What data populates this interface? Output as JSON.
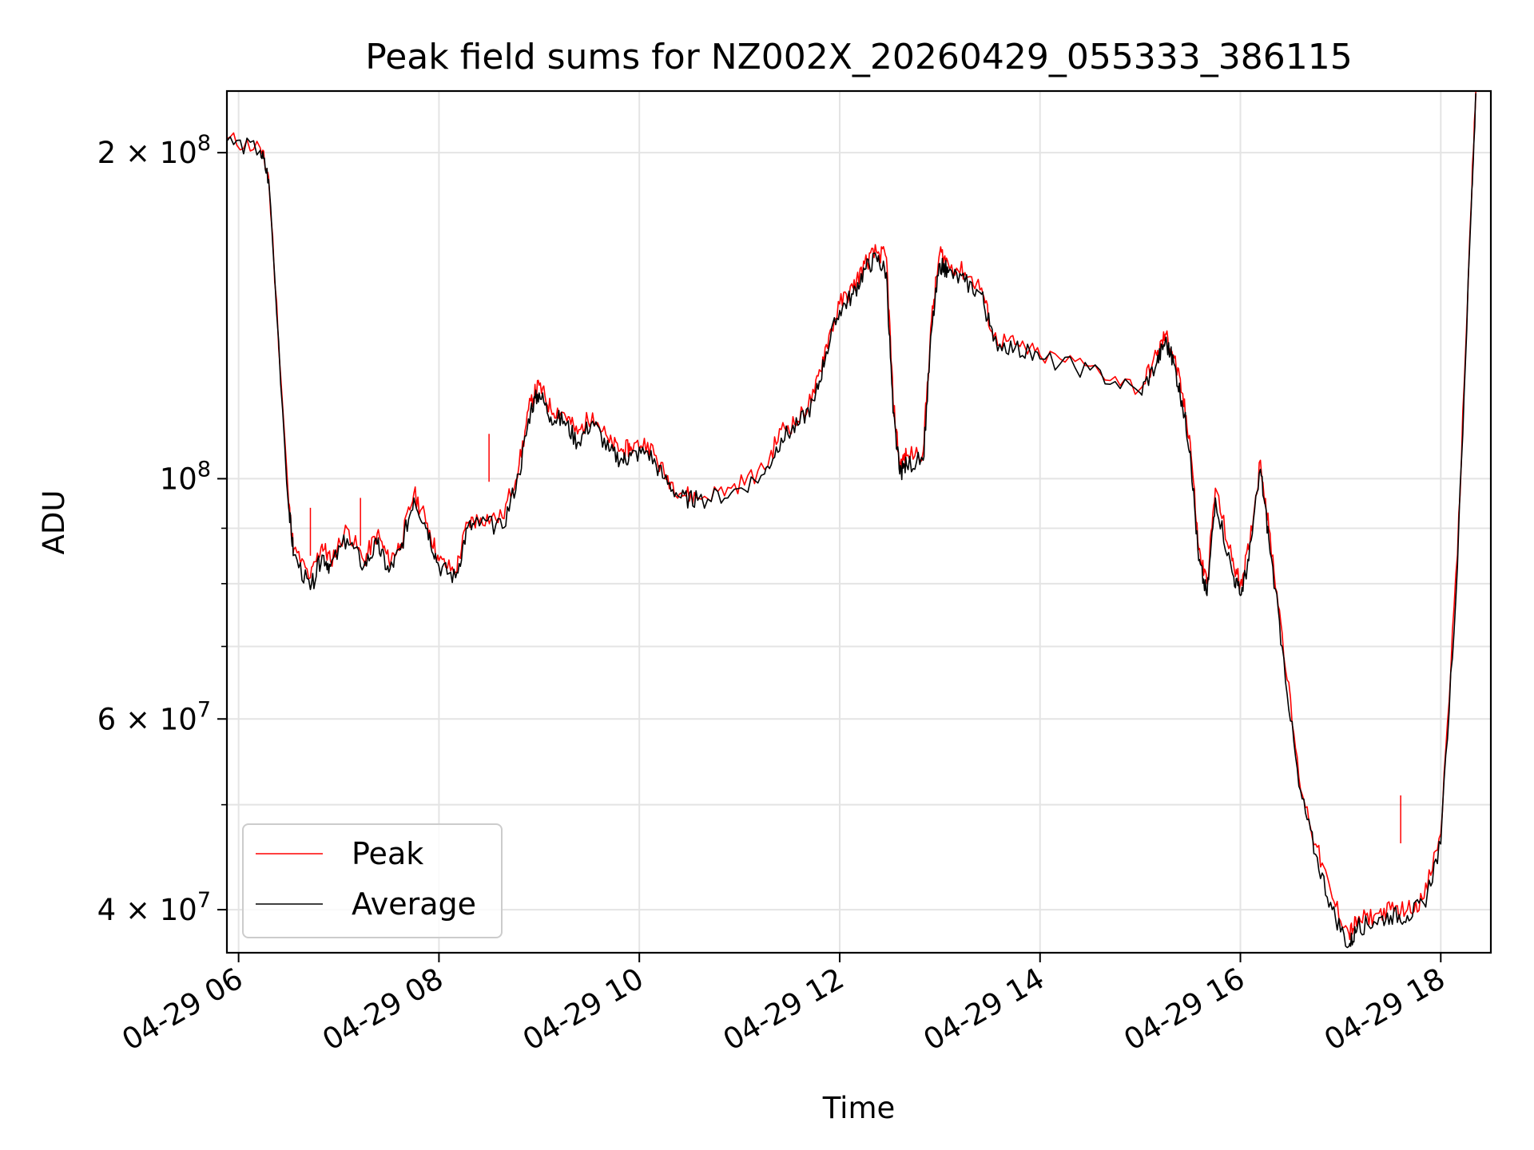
{
  "chart_data": {
    "type": "line",
    "title": "Peak field sums for NZ002X_20260429_055333_386115",
    "xlabel": "Time",
    "ylabel": "ADU",
    "yscale": "log",
    "xlim": [
      "2026-04-29 05:53",
      "2026-04-29 18:30"
    ],
    "ylim": [
      36500000,
      228000000
    ],
    "grid": true,
    "legend_position": "lower-left",
    "x_ticks": [
      "2026-04-29 06:00",
      "2026-04-29 08:00",
      "2026-04-29 10:00",
      "2026-04-29 12:00",
      "2026-04-29 14:00",
      "2026-04-29 16:00",
      "2026-04-29 18:00"
    ],
    "x_tick_labels": [
      "04-29 06",
      "04-29 08",
      "04-29 10",
      "04-29 12",
      "04-29 14",
      "04-29 16",
      "04-29 18"
    ],
    "y_ticks": [
      {
        "value": 40000000,
        "label_base": "4 × 10",
        "label_exp": "7"
      },
      {
        "value": 60000000,
        "label_base": "6 × 10",
        "label_exp": "7"
      },
      {
        "value": 100000000,
        "label_base": "10",
        "label_exp": "8"
      },
      {
        "value": 200000000,
        "label_base": "2 × 10",
        "label_exp": "8"
      }
    ],
    "y_minor_ticks": [
      50000000,
      70000000,
      80000000,
      90000000,
      300000000
    ],
    "series": [
      {
        "name": "Peak",
        "color": "#ff0000",
        "x": [
          "2026-04-29 05:53",
          "2026-04-29 06:13",
          "2026-04-29 06:18",
          "2026-04-29 06:30",
          "2026-04-29 06:33",
          "2026-04-29 06:43",
          "2026-04-29 06:50",
          "2026-04-29 06:55",
          "2026-04-29 07:05",
          "2026-04-29 07:15",
          "2026-04-29 07:23",
          "2026-04-29 07:30",
          "2026-04-29 07:37",
          "2026-04-29 07:45",
          "2026-04-29 07:53",
          "2026-04-29 08:00",
          "2026-04-29 08:10",
          "2026-04-29 08:17",
          "2026-04-29 08:25",
          "2026-04-29 08:38",
          "2026-04-29 08:48",
          "2026-04-29 08:55",
          "2026-04-29 09:00",
          "2026-04-29 09:07",
          "2026-04-29 09:15",
          "2026-04-29 09:23",
          "2026-04-29 09:32",
          "2026-04-29 09:42",
          "2026-04-29 09:50",
          "2026-04-29 09:55",
          "2026-04-29 10:05",
          "2026-04-29 10:15",
          "2026-04-29 10:25",
          "2026-04-29 10:35",
          "2026-04-29 10:55",
          "2026-04-29 11:15",
          "2026-04-29 11:25",
          "2026-04-29 11:35",
          "2026-04-29 11:45",
          "2026-04-29 11:52",
          "2026-04-29 12:00",
          "2026-04-29 12:08",
          "2026-04-29 12:15",
          "2026-04-29 12:22",
          "2026-04-29 12:28",
          "2026-04-29 12:32",
          "2026-04-29 12:36",
          "2026-04-29 12:40",
          "2026-04-29 12:50",
          "2026-04-29 12:55",
          "2026-04-29 13:00",
          "2026-04-29 13:05",
          "2026-04-29 13:15",
          "2026-04-29 13:25",
          "2026-04-29 13:32",
          "2026-04-29 13:45",
          "2026-04-29 14:00",
          "2026-04-29 14:30",
          "2026-04-29 15:00",
          "2026-04-29 15:10",
          "2026-04-29 15:15",
          "2026-04-29 15:20",
          "2026-04-29 15:25",
          "2026-04-29 15:30",
          "2026-04-29 15:35",
          "2026-04-29 15:40",
          "2026-04-29 15:45",
          "2026-04-29 15:55",
          "2026-04-29 16:00",
          "2026-04-29 16:05",
          "2026-04-29 16:12",
          "2026-04-29 16:17",
          "2026-04-29 16:25",
          "2026-04-29 16:35",
          "2026-04-29 16:45",
          "2026-04-29 16:55",
          "2026-04-29 17:05",
          "2026-04-29 17:10",
          "2026-04-29 17:20",
          "2026-04-29 17:30",
          "2026-04-29 17:40",
          "2026-04-29 17:50",
          "2026-04-29 18:00",
          "2026-04-29 18:10",
          "2026-04-29 18:18",
          "2026-04-29 18:21"
        ],
        "y": [
          206000000,
          202000000,
          190000000,
          95000000,
          86000000,
          81000000,
          87000000,
          84000000,
          90000000,
          84000000,
          89000000,
          84000000,
          87000000,
          97000000,
          91000000,
          84000000,
          82000000,
          91000000,
          92000000,
          92000000,
          103000000,
          118000000,
          122000000,
          116000000,
          115000000,
          110000000,
          115000000,
          108000000,
          106000000,
          107000000,
          108000000,
          101000000,
          97000000,
          96000000,
          98000000,
          102000000,
          111000000,
          113000000,
          120000000,
          133000000,
          145000000,
          150000000,
          158000000,
          162000000,
          160000000,
          118000000,
          103000000,
          105000000,
          106000000,
          140000000,
          162000000,
          158000000,
          155000000,
          150000000,
          135000000,
          133000000,
          130000000,
          127000000,
          121000000,
          130000000,
          136000000,
          130000000,
          120000000,
          108000000,
          86000000,
          80000000,
          98000000,
          84000000,
          80000000,
          86000000,
          104000000,
          90000000,
          72000000,
          53000000,
          46000000,
          41000000,
          38000000,
          39000000,
          39500000,
          40000000,
          40000000,
          41000000,
          47000000,
          85000000,
          176000000,
          228000000
        ],
        "spikes": [
          {
            "x": "2026-04-29 08:30",
            "y": 110000000
          },
          {
            "x": "2026-04-29 06:43",
            "y": 94000000
          },
          {
            "x": "2026-04-29 07:13",
            "y": 96000000
          },
          {
            "x": "2026-04-29 17:36",
            "y": 51000000
          }
        ]
      },
      {
        "name": "Average",
        "color": "#000000",
        "x": [
          "2026-04-29 05:53",
          "2026-04-29 06:13",
          "2026-04-29 06:18",
          "2026-04-29 06:30",
          "2026-04-29 06:33",
          "2026-04-29 06:43",
          "2026-04-29 06:50",
          "2026-04-29 06:55",
          "2026-04-29 07:05",
          "2026-04-29 07:15",
          "2026-04-29 07:23",
          "2026-04-29 07:30",
          "2026-04-29 07:37",
          "2026-04-29 07:45",
          "2026-04-29 07:53",
          "2026-04-29 08:00",
          "2026-04-29 08:10",
          "2026-04-29 08:17",
          "2026-04-29 08:25",
          "2026-04-29 08:38",
          "2026-04-29 08:48",
          "2026-04-29 08:55",
          "2026-04-29 09:00",
          "2026-04-29 09:07",
          "2026-04-29 09:15",
          "2026-04-29 09:23",
          "2026-04-29 09:32",
          "2026-04-29 09:42",
          "2026-04-29 09:50",
          "2026-04-29 09:55",
          "2026-04-29 10:05",
          "2026-04-29 10:15",
          "2026-04-29 10:25",
          "2026-04-29 10:35",
          "2026-04-29 10:55",
          "2026-04-29 11:15",
          "2026-04-29 11:25",
          "2026-04-29 11:35",
          "2026-04-29 11:45",
          "2026-04-29 11:52",
          "2026-04-29 12:00",
          "2026-04-29 12:08",
          "2026-04-29 12:15",
          "2026-04-29 12:22",
          "2026-04-29 12:28",
          "2026-04-29 12:32",
          "2026-04-29 12:36",
          "2026-04-29 12:40",
          "2026-04-29 12:50",
          "2026-04-29 12:55",
          "2026-04-29 13:00",
          "2026-04-29 13:05",
          "2026-04-29 13:15",
          "2026-04-29 13:25",
          "2026-04-29 13:32",
          "2026-04-29 13:45",
          "2026-04-29 14:00",
          "2026-04-29 14:30",
          "2026-04-29 15:00",
          "2026-04-29 15:10",
          "2026-04-29 15:15",
          "2026-04-29 15:20",
          "2026-04-29 15:25",
          "2026-04-29 15:30",
          "2026-04-29 15:35",
          "2026-04-29 15:40",
          "2026-04-29 15:45",
          "2026-04-29 15:55",
          "2026-04-29 16:00",
          "2026-04-29 16:05",
          "2026-04-29 16:12",
          "2026-04-29 16:17",
          "2026-04-29 16:25",
          "2026-04-29 16:35",
          "2026-04-29 16:45",
          "2026-04-29 16:55",
          "2026-04-29 17:05",
          "2026-04-29 17:10",
          "2026-04-29 17:20",
          "2026-04-29 17:30",
          "2026-04-29 17:40",
          "2026-04-29 17:50",
          "2026-04-29 18:00",
          "2026-04-29 18:10",
          "2026-04-29 18:18",
          "2026-04-29 18:21"
        ],
        "y": [
          205000000,
          201000000,
          189000000,
          94000000,
          85000000,
          79000000,
          85000000,
          83000000,
          88000000,
          83000000,
          87000000,
          82000000,
          86000000,
          96000000,
          90000000,
          83000000,
          81000000,
          90000000,
          91000000,
          90000000,
          101000000,
          116000000,
          120000000,
          114000000,
          113000000,
          108000000,
          113000000,
          106000000,
          104000000,
          105000000,
          106000000,
          100000000,
          96000000,
          95500000,
          97000000,
          101000000,
          109000000,
          112000000,
          118000000,
          131000000,
          143000000,
          148000000,
          156000000,
          160000000,
          155000000,
          115000000,
          101000000,
          103000000,
          104000000,
          137000000,
          158000000,
          155000000,
          152000000,
          148000000,
          134000000,
          132000000,
          129000000,
          126000000,
          120000000,
          128000000,
          134000000,
          128000000,
          118000000,
          106000000,
          84000000,
          78000000,
          96000000,
          82000000,
          78000000,
          84000000,
          102000000,
          88000000,
          70000000,
          52000000,
          45000000,
          40000000,
          37000000,
          38500000,
          39000000,
          39500000,
          39500000,
          40500000,
          46000000,
          83000000,
          174000000,
          227000000
        ]
      }
    ]
  }
}
